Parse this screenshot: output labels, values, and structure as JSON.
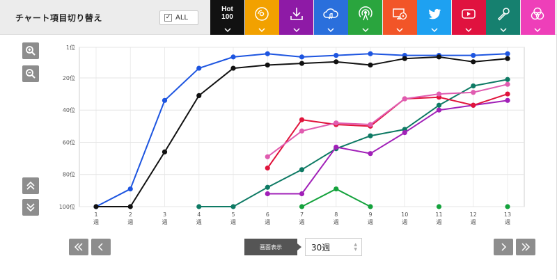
{
  "header": {
    "title": "チャート項目切り替え",
    "all_label": "ALL",
    "all_checked": true,
    "tiles": [
      {
        "id": "hot100",
        "label": "Hot\n100",
        "color": "#111111",
        "icon": "hot100-text"
      },
      {
        "id": "sales",
        "color": "#f2a100",
        "icon": "disc-icon"
      },
      {
        "id": "download",
        "color": "#8e1aa6",
        "icon": "download-icon"
      },
      {
        "id": "streaming",
        "color": "#2a6fdc",
        "icon": "cloud-music-icon"
      },
      {
        "id": "radio",
        "color": "#2aa53e",
        "icon": "radio-broadcast-icon"
      },
      {
        "id": "video",
        "color": "#f25528",
        "icon": "monitor-disc-icon"
      },
      {
        "id": "twitter",
        "color": "#1ea1f1",
        "icon": "twitter-bird-icon"
      },
      {
        "id": "youtube",
        "color": "#e0123f",
        "icon": "play-icon"
      },
      {
        "id": "karaoke",
        "color": "#16806f",
        "icon": "microphone-icon"
      },
      {
        "id": "lookup",
        "color": "#ee3fb9",
        "icon": "circles-icon"
      }
    ]
  },
  "controls": {
    "display_label": "画面表示",
    "weeks_value": "30週"
  },
  "chart_data": {
    "type": "line",
    "y_inverted": true,
    "ylim": [
      1,
      100
    ],
    "y_ticks": [
      {
        "value": 1,
        "label": "1位"
      },
      {
        "value": 20,
        "label": "20位"
      },
      {
        "value": 40,
        "label": "40位"
      },
      {
        "value": 60,
        "label": "60位"
      },
      {
        "value": 80,
        "label": "80位"
      },
      {
        "value": 100,
        "label": "100位"
      }
    ],
    "x": [
      1,
      2,
      3,
      4,
      5,
      6,
      7,
      8,
      9,
      10,
      11,
      12,
      13
    ],
    "x_unit": "週",
    "grid": true,
    "series": [
      {
        "id": "streaming",
        "color": "#1d55e0",
        "values": [
          100,
          89,
          34,
          14,
          7,
          5,
          7,
          6,
          5,
          6,
          6,
          6,
          5
        ]
      },
      {
        "id": "hot100",
        "color": "#111111",
        "values": [
          100,
          100,
          66,
          31,
          14,
          12,
          11,
          10,
          12,
          8,
          7,
          10,
          8
        ]
      },
      {
        "id": "karaoke",
        "color": "#0e7a64",
        "values": [
          null,
          null,
          null,
          100,
          100,
          88,
          77,
          64,
          56,
          52,
          37,
          25,
          21
        ]
      },
      {
        "id": "download",
        "color": "#a120b8",
        "values": [
          null,
          null,
          null,
          null,
          null,
          92,
          92,
          63,
          67,
          54,
          40,
          37,
          34
        ]
      },
      {
        "id": "youtube",
        "color": "#e0143c",
        "values": [
          null,
          null,
          null,
          null,
          null,
          76,
          46,
          49,
          50,
          33,
          32,
          37,
          30
        ]
      },
      {
        "id": "lookup",
        "color": "#e05cb0",
        "values": [
          null,
          null,
          null,
          null,
          null,
          69,
          53,
          48,
          49,
          33,
          30,
          29,
          24
        ]
      },
      {
        "id": "radio",
        "color": "#14a23c",
        "values": [
          null,
          null,
          null,
          null,
          null,
          null,
          100,
          89,
          100,
          null,
          100,
          null,
          100
        ]
      }
    ]
  }
}
